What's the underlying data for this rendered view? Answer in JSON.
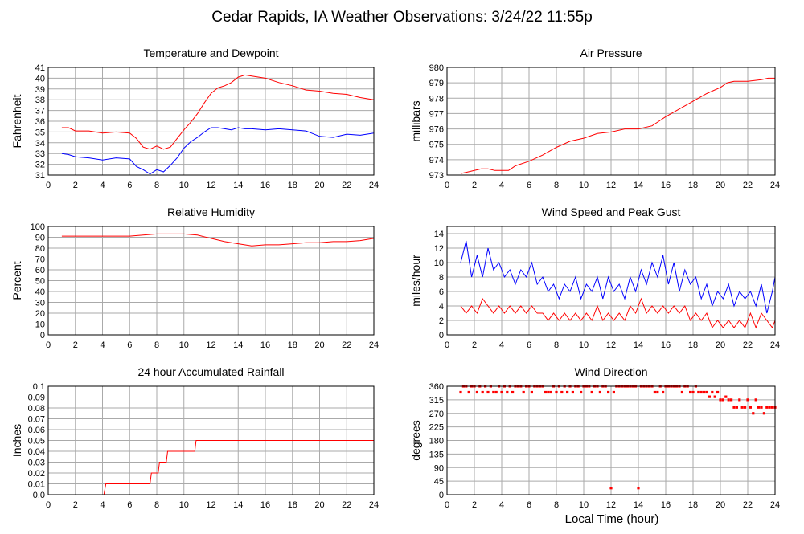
{
  "title": "Cedar Rapids, IA Weather Observations: 3/24/22 11:55p",
  "xlabel": "Local Time (hour)",
  "colors": {
    "red": "#ff0000",
    "blue": "#0000ff",
    "grid": "#aaaaaa",
    "background": "#ffffff"
  },
  "chart_data": [
    {
      "id": "temp",
      "type": "line",
      "title": "Temperature and Dewpoint",
      "ylabel": "Fahrenheit",
      "xlim": [
        0,
        24
      ],
      "ylim": [
        31,
        41
      ],
      "xticks": [
        0,
        2,
        4,
        6,
        8,
        10,
        12,
        14,
        16,
        18,
        20,
        22,
        24
      ],
      "yticks": [
        31,
        32,
        33,
        34,
        35,
        36,
        37,
        38,
        39,
        40,
        41
      ],
      "grid": true,
      "x": [
        1,
        1.5,
        2,
        3,
        4,
        5,
        6,
        6.5,
        7,
        7.5,
        8,
        8.5,
        9,
        9.5,
        10,
        10.5,
        11,
        11.5,
        12,
        12.5,
        13,
        13.5,
        14,
        14.5,
        15,
        16,
        17,
        18,
        19,
        20,
        21,
        22,
        23,
        24
      ],
      "series": [
        {
          "color": "#ff0000",
          "values": [
            35.4,
            35.4,
            35.1,
            35.1,
            34.9,
            35.0,
            34.9,
            34.4,
            33.6,
            33.4,
            33.7,
            33.4,
            33.6,
            34.4,
            35.2,
            35.9,
            36.7,
            37.7,
            38.6,
            39.1,
            39.3,
            39.6,
            40.1,
            40.3,
            40.2,
            40.0,
            39.6,
            39.3,
            38.9,
            38.8,
            38.6,
            38.5,
            38.2,
            38.0
          ]
        },
        {
          "color": "#0000ff",
          "values": [
            33.0,
            32.9,
            32.7,
            32.6,
            32.4,
            32.6,
            32.5,
            31.8,
            31.5,
            31.1,
            31.5,
            31.3,
            31.9,
            32.6,
            33.5,
            34.1,
            34.5,
            35.0,
            35.4,
            35.4,
            35.3,
            35.2,
            35.4,
            35.3,
            35.3,
            35.2,
            35.3,
            35.2,
            35.1,
            34.6,
            34.5,
            34.8,
            34.7,
            34.9
          ]
        }
      ]
    },
    {
      "id": "pressure",
      "type": "line",
      "title": "Air Pressure",
      "ylabel": "millibars",
      "xlim": [
        0,
        24
      ],
      "ylim": [
        973,
        980
      ],
      "xticks": [
        0,
        2,
        4,
        6,
        8,
        10,
        12,
        14,
        16,
        18,
        20,
        22,
        24
      ],
      "yticks": [
        973,
        974,
        975,
        976,
        977,
        978,
        979,
        980
      ],
      "grid": true,
      "x": [
        1,
        1.5,
        2,
        2.5,
        3,
        3.5,
        4,
        4.5,
        5,
        6,
        7,
        8,
        9,
        10,
        11,
        12,
        13,
        14,
        15,
        15.5,
        16,
        17,
        18,
        19,
        20,
        20.5,
        21,
        22,
        23,
        23.5,
        24
      ],
      "series": [
        {
          "color": "#ff0000",
          "values": [
            973.1,
            973.2,
            973.3,
            973.4,
            973.4,
            973.3,
            973.3,
            973.3,
            973.6,
            973.9,
            974.3,
            974.8,
            975.2,
            975.4,
            975.7,
            975.8,
            976.0,
            976.0,
            976.2,
            976.5,
            976.8,
            977.3,
            977.8,
            978.3,
            978.7,
            979.0,
            979.1,
            979.1,
            979.2,
            979.3,
            979.3
          ]
        }
      ]
    },
    {
      "id": "rh",
      "type": "line",
      "title": "Relative Humidity",
      "ylabel": "Percent",
      "xlim": [
        0,
        24
      ],
      "ylim": [
        0,
        100
      ],
      "xticks": [
        0,
        2,
        4,
        6,
        8,
        10,
        12,
        14,
        16,
        18,
        20,
        22,
        24
      ],
      "yticks": [
        0,
        10,
        20,
        30,
        40,
        50,
        60,
        70,
        80,
        90,
        100
      ],
      "grid": true,
      "x": [
        1,
        2,
        4,
        6,
        7,
        8,
        9,
        10,
        11,
        12,
        13,
        14,
        15,
        16,
        17,
        18,
        19,
        20,
        21,
        22,
        23,
        24
      ],
      "series": [
        {
          "color": "#ff0000",
          "values": [
            91,
            91,
            91,
            91,
            92,
            93,
            93,
            93,
            92,
            89,
            86,
            84,
            82,
            83,
            83,
            84,
            85,
            85,
            86,
            86,
            87,
            89
          ]
        }
      ]
    },
    {
      "id": "wind",
      "type": "line",
      "title": "Wind Speed and Peak Gust",
      "ylabel": "miles/hour",
      "xlim": [
        0,
        24
      ],
      "ylim": [
        0,
        15
      ],
      "xticks": [
        0,
        2,
        4,
        6,
        8,
        10,
        12,
        14,
        16,
        18,
        20,
        22,
        24
      ],
      "yticks": [
        0,
        2,
        4,
        6,
        8,
        10,
        12,
        14
      ],
      "grid": true,
      "x": [
        1,
        1.4,
        1.8,
        2.2,
        2.6,
        3,
        3.4,
        3.8,
        4.2,
        4.6,
        5,
        5.4,
        5.8,
        6.2,
        6.6,
        7,
        7.4,
        7.8,
        8.2,
        8.6,
        9,
        9.4,
        9.8,
        10.2,
        10.6,
        11,
        11.4,
        11.8,
        12.2,
        12.6,
        13,
        13.4,
        13.8,
        14.2,
        14.6,
        15,
        15.4,
        15.8,
        16.2,
        16.6,
        17,
        17.4,
        17.8,
        18.2,
        18.6,
        19,
        19.4,
        19.8,
        20.2,
        20.6,
        21,
        21.4,
        21.8,
        22.2,
        22.6,
        23,
        23.4,
        23.8,
        24
      ],
      "series": [
        {
          "color": "#0000ff",
          "values": [
            10,
            13,
            8,
            11,
            8,
            12,
            9,
            10,
            8,
            9,
            7,
            9,
            8,
            10,
            7,
            8,
            6,
            7,
            5,
            7,
            6,
            8,
            5,
            7,
            6,
            8,
            5,
            8,
            6,
            7,
            5,
            8,
            6,
            9,
            7,
            10,
            8,
            11,
            7,
            10,
            6,
            9,
            7,
            8,
            5,
            7,
            4,
            6,
            5,
            7,
            4,
            6,
            5,
            6,
            4,
            7,
            3,
            6,
            8
          ]
        },
        {
          "color": "#ff0000",
          "values": [
            4,
            3,
            4,
            3,
            5,
            4,
            3,
            4,
            3,
            4,
            3,
            4,
            3,
            4,
            3,
            3,
            2,
            3,
            2,
            3,
            2,
            3,
            2,
            3,
            2,
            4,
            2,
            3,
            2,
            3,
            2,
            4,
            3,
            5,
            3,
            4,
            3,
            4,
            3,
            4,
            3,
            4,
            2,
            3,
            2,
            3,
            1,
            2,
            1,
            2,
            1,
            2,
            1,
            3,
            1,
            3,
            2,
            1,
            2
          ]
        }
      ]
    },
    {
      "id": "rain",
      "type": "line",
      "title": "24 hour Accumulated Rainfall",
      "ylabel": "Inches",
      "xlim": [
        0,
        24
      ],
      "ylim": [
        0,
        0.1
      ],
      "xticks": [
        0,
        2,
        4,
        6,
        8,
        10,
        12,
        14,
        16,
        18,
        20,
        22,
        24
      ],
      "yticks": [
        0,
        0.01,
        0.02,
        0.03,
        0.04,
        0.05,
        0.06,
        0.07,
        0.08,
        0.09,
        0.1
      ],
      "ytick_labels": [
        "0.0",
        "0.01",
        "0.02",
        "0.03",
        "0.04",
        "0.05",
        "0.06",
        "0.07",
        "0.08",
        "0.09",
        "0.1"
      ],
      "grid": true,
      "step": true,
      "x": [
        1,
        4.1,
        4.25,
        7.5,
        7.6,
        8.1,
        8.2,
        8.7,
        8.8,
        9.1,
        9.2,
        10.8,
        10.9,
        24
      ],
      "series": [
        {
          "color": "#ff0000",
          "values": [
            0,
            0,
            0.01,
            0.01,
            0.02,
            0.02,
            0.03,
            0.03,
            0.04,
            0.04,
            0.04,
            0.04,
            0.05,
            0.05
          ]
        }
      ]
    },
    {
      "id": "wdir",
      "type": "scatter",
      "title": "Wind Direction",
      "ylabel": "degrees",
      "xlim": [
        0,
        24
      ],
      "ylim": [
        0,
        360
      ],
      "xticks": [
        0,
        2,
        4,
        6,
        8,
        10,
        12,
        14,
        16,
        18,
        20,
        22,
        24
      ],
      "yticks": [
        0,
        45,
        90,
        135,
        180,
        225,
        270,
        315,
        360
      ],
      "grid": true,
      "points": [
        [
          1.0,
          340
        ],
        [
          1.2,
          360
        ],
        [
          1.4,
          360
        ],
        [
          1.6,
          340
        ],
        [
          1.8,
          360
        ],
        [
          2.0,
          360
        ],
        [
          2.2,
          340
        ],
        [
          2.4,
          360
        ],
        [
          2.6,
          340
        ],
        [
          2.8,
          360
        ],
        [
          3.0,
          340
        ],
        [
          3.2,
          360
        ],
        [
          3.4,
          340
        ],
        [
          3.6,
          340
        ],
        [
          3.8,
          360
        ],
        [
          4.0,
          340
        ],
        [
          4.2,
          360
        ],
        [
          4.4,
          340
        ],
        [
          4.6,
          360
        ],
        [
          4.8,
          340
        ],
        [
          5.0,
          360
        ],
        [
          5.2,
          360
        ],
        [
          5.4,
          360
        ],
        [
          5.6,
          340
        ],
        [
          5.8,
          360
        ],
        [
          6.0,
          360
        ],
        [
          6.2,
          340
        ],
        [
          6.4,
          360
        ],
        [
          6.6,
          360
        ],
        [
          6.8,
          360
        ],
        [
          7.0,
          360
        ],
        [
          7.2,
          340
        ],
        [
          7.4,
          340
        ],
        [
          7.6,
          340
        ],
        [
          7.8,
          360
        ],
        [
          8.0,
          340
        ],
        [
          8.2,
          360
        ],
        [
          8.4,
          340
        ],
        [
          8.6,
          360
        ],
        [
          8.8,
          340
        ],
        [
          9.0,
          360
        ],
        [
          9.2,
          340
        ],
        [
          9.4,
          360
        ],
        [
          9.6,
          360
        ],
        [
          9.8,
          340
        ],
        [
          10.0,
          360
        ],
        [
          10.2,
          360
        ],
        [
          10.4,
          360
        ],
        [
          10.6,
          340
        ],
        [
          10.8,
          360
        ],
        [
          11.0,
          360
        ],
        [
          11.2,
          340
        ],
        [
          11.4,
          360
        ],
        [
          11.6,
          360
        ],
        [
          11.8,
          340
        ],
        [
          12.0,
          22
        ],
        [
          12.2,
          340
        ],
        [
          12.4,
          360
        ],
        [
          12.6,
          360
        ],
        [
          12.8,
          360
        ],
        [
          13.0,
          360
        ],
        [
          13.2,
          360
        ],
        [
          13.4,
          360
        ],
        [
          13.6,
          360
        ],
        [
          13.8,
          360
        ],
        [
          14.0,
          22
        ],
        [
          14.2,
          360
        ],
        [
          14.4,
          360
        ],
        [
          14.6,
          360
        ],
        [
          14.8,
          360
        ],
        [
          15.0,
          360
        ],
        [
          15.2,
          340
        ],
        [
          15.4,
          340
        ],
        [
          15.6,
          360
        ],
        [
          15.8,
          340
        ],
        [
          16.0,
          360
        ],
        [
          16.2,
          360
        ],
        [
          16.4,
          360
        ],
        [
          16.6,
          360
        ],
        [
          16.8,
          360
        ],
        [
          17.0,
          360
        ],
        [
          17.2,
          340
        ],
        [
          17.4,
          360
        ],
        [
          17.6,
          360
        ],
        [
          17.8,
          340
        ],
        [
          18.0,
          340
        ],
        [
          18.2,
          360
        ],
        [
          18.4,
          340
        ],
        [
          18.6,
          340
        ],
        [
          18.8,
          340
        ],
        [
          19.0,
          340
        ],
        [
          19.2,
          325
        ],
        [
          19.4,
          340
        ],
        [
          19.6,
          325
        ],
        [
          19.8,
          340
        ],
        [
          20.0,
          315
        ],
        [
          20.2,
          315
        ],
        [
          20.4,
          325
        ],
        [
          20.6,
          315
        ],
        [
          20.8,
          315
        ],
        [
          21.0,
          290
        ],
        [
          21.2,
          290
        ],
        [
          21.4,
          315
        ],
        [
          21.6,
          290
        ],
        [
          21.8,
          290
        ],
        [
          22.0,
          315
        ],
        [
          22.2,
          290
        ],
        [
          22.4,
          270
        ],
        [
          22.6,
          315
        ],
        [
          22.8,
          290
        ],
        [
          23.0,
          290
        ],
        [
          23.2,
          270
        ],
        [
          23.4,
          290
        ],
        [
          23.6,
          290
        ],
        [
          23.8,
          290
        ],
        [
          24.0,
          290
        ]
      ]
    }
  ]
}
